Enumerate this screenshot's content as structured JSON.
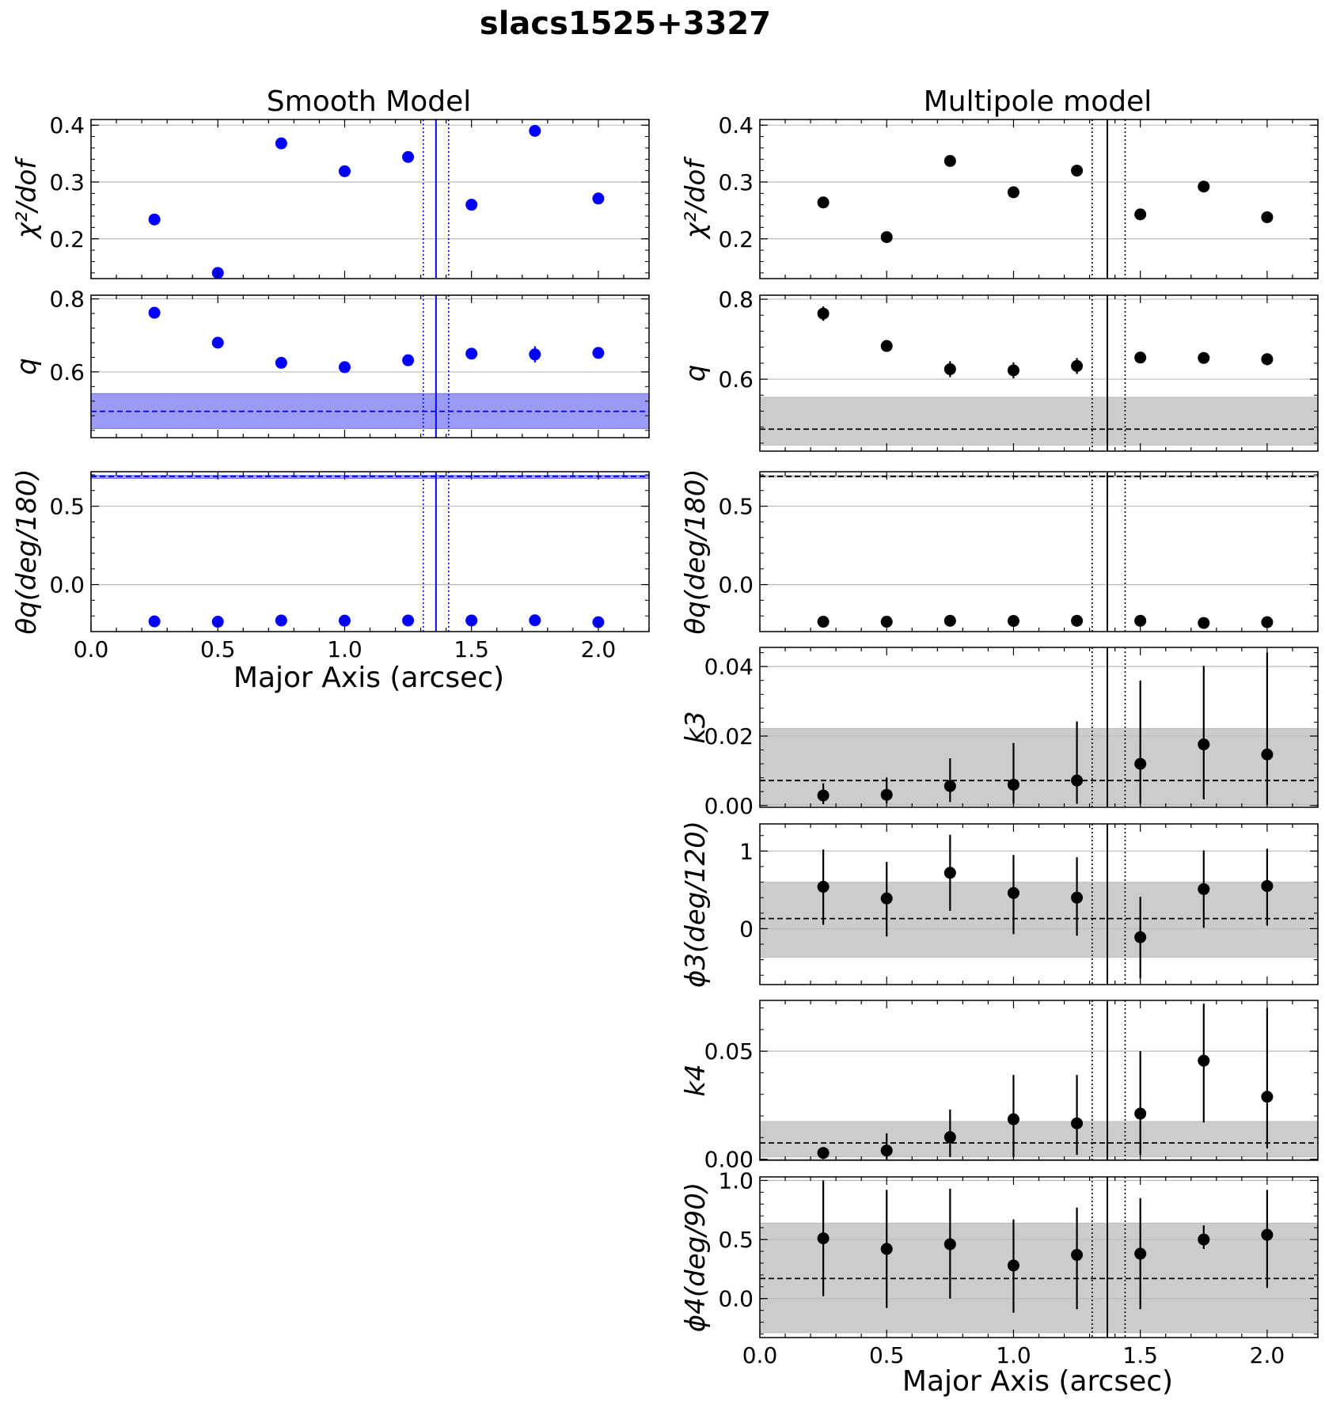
{
  "figure": {
    "title": "slacs1525+3327",
    "left_title": "Smooth Model",
    "right_title": "Multipole model",
    "left_xlabel": "Major Axis (arcsec)",
    "right_xlabel": "Major Axis (arcsec)"
  },
  "colors": {
    "smooth": "#0000ff",
    "smooth_band": "#9b9bf5",
    "multipole": "#000000",
    "multipole_band": "#cccccc",
    "grid": "#bbbbbb"
  },
  "chart_data": [
    {
      "type": "scatter",
      "panel": "smooth-chi2",
      "column": "left",
      "ylabel": "χ²/dof",
      "xlim": [
        0,
        2.2
      ],
      "ylim": [
        0.13,
        0.41
      ],
      "yticks": [
        0.2,
        0.3,
        0.4
      ],
      "ytick_labels": [
        "0.2",
        "0.3",
        "0.4"
      ],
      "x": [
        0.25,
        0.5,
        0.75,
        1.0,
        1.25,
        1.5,
        1.75,
        2.0
      ],
      "y": [
        0.234,
        0.14,
        0.368,
        0.319,
        0.344,
        0.26,
        0.39,
        0.271
      ],
      "yerr": [
        0,
        0,
        0,
        0,
        0,
        0,
        0,
        0
      ],
      "vline": 1.36,
      "vline_range": [
        1.31,
        1.41
      ]
    },
    {
      "type": "scatter",
      "panel": "smooth-q",
      "column": "left",
      "ylabel": "q",
      "xlim": [
        0,
        2.2
      ],
      "ylim": [
        0.42,
        0.81
      ],
      "yticks": [
        0.6,
        0.8
      ],
      "ytick_labels": [
        "0.6",
        "0.8"
      ],
      "x": [
        0.25,
        0.5,
        0.75,
        1.0,
        1.25,
        1.5,
        1.75,
        2.0
      ],
      "y": [
        0.762,
        0.68,
        0.625,
        0.613,
        0.632,
        0.65,
        0.648,
        0.652
      ],
      "yerr": [
        0.005,
        0.005,
        0.005,
        0.005,
        0.008,
        0.012,
        0.022,
        0.01
      ],
      "hline": 0.492,
      "hband": [
        0.445,
        0.541
      ],
      "vline": 1.36,
      "vline_range": [
        1.31,
        1.41
      ]
    },
    {
      "type": "scatter",
      "panel": "smooth-theta",
      "column": "left",
      "ylabel": "θq(deg/180)",
      "xlim": [
        0,
        2.2
      ],
      "ylim": [
        -0.3,
        0.72
      ],
      "yticks": [
        0.0,
        0.5
      ],
      "ytick_labels": [
        "0.0",
        "0.5"
      ],
      "xticks": [
        0.0,
        0.5,
        1.0,
        1.5,
        2.0
      ],
      "xtick_labels": [
        "0.0",
        "0.5",
        "1.0",
        "1.5",
        "2.0"
      ],
      "x": [
        0.25,
        0.5,
        0.75,
        1.0,
        1.25,
        1.5,
        1.75,
        2.0
      ],
      "y": [
        -0.235,
        -0.237,
        -0.229,
        -0.23,
        -0.229,
        -0.229,
        -0.228,
        -0.24
      ],
      "yerr": [
        0,
        0,
        0,
        0,
        0,
        0,
        0,
        0
      ],
      "hline": 0.69,
      "hband": [
        0.677,
        0.697
      ],
      "vline": 1.36,
      "vline_range": [
        1.31,
        1.41
      ]
    },
    {
      "type": "scatter",
      "panel": "multi-chi2",
      "column": "right",
      "ylabel": "χ²/dof",
      "xlim": [
        0,
        2.2
      ],
      "ylim": [
        0.13,
        0.41
      ],
      "yticks": [
        0.2,
        0.3,
        0.4
      ],
      "ytick_labels": [
        "0.2",
        "0.3",
        "0.4"
      ],
      "x": [
        0.25,
        0.5,
        0.75,
        1.0,
        1.25,
        1.5,
        1.75,
        2.0
      ],
      "y": [
        0.264,
        0.203,
        0.337,
        0.282,
        0.32,
        0.243,
        0.292,
        0.238
      ],
      "yerr": [
        0,
        0,
        0,
        0,
        0,
        0,
        0,
        0
      ],
      "vline": 1.37,
      "vline_range": [
        1.31,
        1.44
      ]
    },
    {
      "type": "scatter",
      "panel": "multi-q",
      "column": "right",
      "ylabel": "q",
      "xlim": [
        0,
        2.2
      ],
      "ylim": [
        0.42,
        0.81
      ],
      "yticks": [
        0.6,
        0.8
      ],
      "ytick_labels": [
        "0.6",
        "0.8"
      ],
      "x": [
        0.25,
        0.5,
        0.75,
        1.0,
        1.25,
        1.5,
        1.75,
        2.0
      ],
      "y": [
        0.764,
        0.683,
        0.625,
        0.622,
        0.633,
        0.654,
        0.653,
        0.65
      ],
      "yerr": [
        0.018,
        0.014,
        0.02,
        0.02,
        0.02,
        0.01,
        0.01,
        0.015
      ],
      "hline": 0.475,
      "hband": [
        0.435,
        0.555
      ],
      "vline": 1.37,
      "vline_range": [
        1.31,
        1.44
      ]
    },
    {
      "type": "scatter",
      "panel": "multi-theta",
      "column": "right",
      "ylabel": "θq(deg/180)",
      "xlim": [
        0,
        2.2
      ],
      "ylim": [
        -0.3,
        0.72
      ],
      "yticks": [
        0.0,
        0.5
      ],
      "ytick_labels": [
        "0.0",
        "0.5"
      ],
      "x": [
        0.25,
        0.5,
        0.75,
        1.0,
        1.25,
        1.5,
        1.75,
        2.0
      ],
      "y": [
        -0.237,
        -0.237,
        -0.231,
        -0.232,
        -0.231,
        -0.231,
        -0.245,
        -0.24
      ],
      "yerr": [
        0,
        0,
        0,
        0,
        0,
        0,
        0,
        0
      ],
      "hline": 0.69,
      "hband": [
        0.685,
        0.697
      ],
      "vline": 1.37,
      "vline_range": [
        1.31,
        1.44
      ]
    },
    {
      "type": "scatter",
      "panel": "multi-k3",
      "column": "right",
      "ylabel": "k3",
      "xlim": [
        0,
        2.2
      ],
      "ylim": [
        -0.0005,
        0.0455
      ],
      "yticks": [
        0.0,
        0.02,
        0.04
      ],
      "ytick_labels": [
        "0.00",
        "0.02",
        "0.04"
      ],
      "x": [
        0.25,
        0.5,
        0.75,
        1.0,
        1.25,
        1.5,
        1.75,
        2.0
      ],
      "y": [
        0.0029,
        0.0031,
        0.0056,
        0.006,
        0.0072,
        0.012,
        0.0176,
        0.0147
      ],
      "yerr_low": [
        0.0025,
        0.0025,
        0.0046,
        0.0055,
        0.0067,
        0.0115,
        0.0158,
        0.0145
      ],
      "yerr_high": [
        0.0035,
        0.005,
        0.008,
        0.012,
        0.017,
        0.024,
        0.0226,
        0.0293
      ],
      "hline": 0.0072,
      "hband": [
        0.0002,
        0.0222
      ],
      "vline": 1.37,
      "vline_range": [
        1.31,
        1.44
      ]
    },
    {
      "type": "scatter",
      "panel": "multi-phi3",
      "column": "right",
      "ylabel": "ϕ3(deg/120)",
      "xlim": [
        0,
        2.2
      ],
      "ylim": [
        -0.72,
        1.35
      ],
      "yticks": [
        0,
        1
      ],
      "ytick_labels": [
        "0",
        "1"
      ],
      "x": [
        0.25,
        0.5,
        0.75,
        1.0,
        1.25,
        1.5,
        1.75,
        2.0
      ],
      "y": [
        0.54,
        0.39,
        0.72,
        0.46,
        0.4,
        -0.11,
        0.51,
        0.55
      ],
      "yerr_low": [
        0.49,
        0.49,
        0.49,
        0.53,
        0.49,
        0.53,
        0.5,
        0.51
      ],
      "yerr_high": [
        0.48,
        0.47,
        0.49,
        0.49,
        0.52,
        0.52,
        0.5,
        0.48
      ],
      "hline": 0.13,
      "hband": [
        -0.37,
        0.6
      ],
      "vline": 1.37,
      "vline_range": [
        1.31,
        1.44
      ]
    },
    {
      "type": "scatter",
      "panel": "multi-k4",
      "column": "right",
      "ylabel": "k4",
      "xlim": [
        0,
        2.2
      ],
      "ylim": [
        -0.0005,
        0.0735
      ],
      "yticks": [
        0.0,
        0.05
      ],
      "ytick_labels": [
        "0.00",
        "0.05"
      ],
      "x": [
        0.25,
        0.5,
        0.75,
        1.0,
        1.25,
        1.5,
        1.75,
        2.0
      ],
      "y": [
        0.0029,
        0.004,
        0.0102,
        0.0185,
        0.0166,
        0.0211,
        0.0456,
        0.0289
      ],
      "yerr_low": [
        0.0029,
        0.004,
        0.0092,
        0.0175,
        0.0146,
        0.0191,
        0.0286,
        0.0239
      ],
      "yerr_high": [
        0.0011,
        0.008,
        0.0128,
        0.0205,
        0.0224,
        0.0289,
        0.0264,
        0.0411
      ],
      "hline": 0.0075,
      "hband": [
        0.001,
        0.0175
      ],
      "vline": 1.37,
      "vline_range": [
        1.31,
        1.44
      ]
    },
    {
      "type": "scatter",
      "panel": "multi-phi4",
      "column": "right",
      "ylabel": "ϕ4(deg/90)",
      "xlim": [
        0,
        2.2
      ],
      "ylim": [
        -0.33,
        1.03
      ],
      "yticks": [
        0.0,
        0.5,
        1.0
      ],
      "ytick_labels": [
        "0.0",
        "0.5",
        "1.0"
      ],
      "xticks": [
        0.0,
        0.5,
        1.0,
        1.5,
        2.0
      ],
      "xtick_labels": [
        "0.0",
        "0.5",
        "1.0",
        "1.5",
        "2.0"
      ],
      "x": [
        0.25,
        0.5,
        0.75,
        1.0,
        1.25,
        1.5,
        1.75,
        2.0
      ],
      "y": [
        0.51,
        0.42,
        0.46,
        0.28,
        0.37,
        0.38,
        0.5,
        0.54
      ],
      "yerr_low": [
        0.49,
        0.5,
        0.46,
        0.4,
        0.46,
        0.47,
        0.08,
        0.45
      ],
      "yerr_high": [
        0.49,
        0.5,
        0.47,
        0.39,
        0.4,
        0.47,
        0.12,
        0.38
      ],
      "hline": 0.17,
      "hband": [
        -0.29,
        0.64
      ],
      "vline": 1.37,
      "vline_range": [
        1.31,
        1.44
      ]
    }
  ]
}
